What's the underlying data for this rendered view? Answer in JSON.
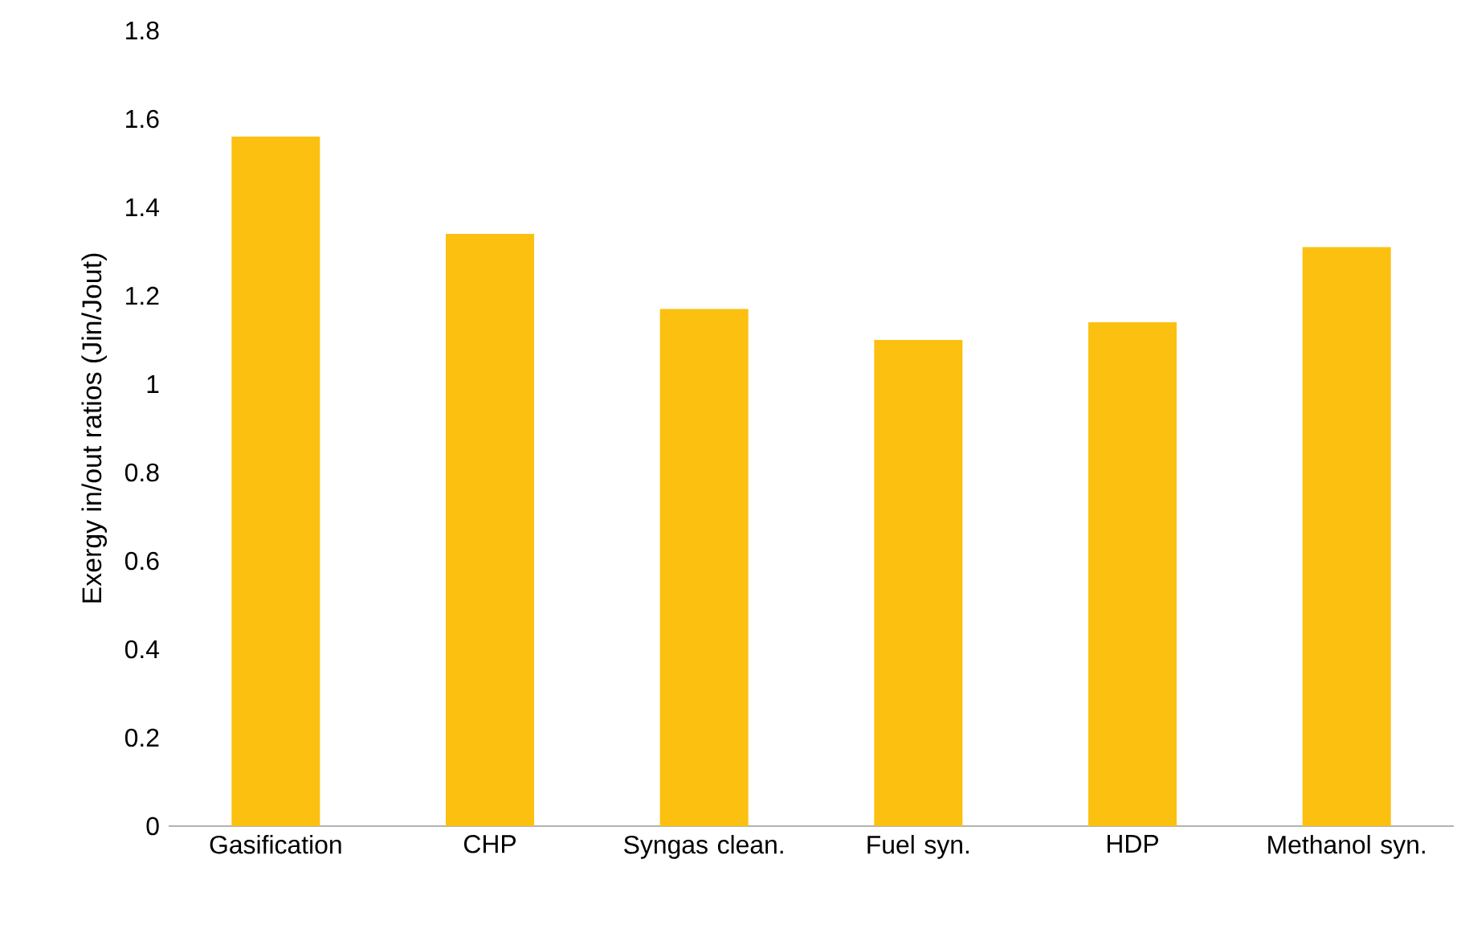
{
  "chart_data": {
    "type": "bar",
    "ylabel": "Exergy in/out ratios (Jin/Jout)",
    "categories": [
      "Gasification",
      "CHP",
      "Syngas clean.",
      "Fuel syn.",
      "HDP",
      "Methanol syn."
    ],
    "values": [
      1.56,
      1.34,
      1.17,
      1.1,
      1.14,
      1.31
    ],
    "color": "#fcc010",
    "ylim": [
      0,
      1.8
    ],
    "yticks": [
      0,
      0.2,
      0.4,
      0.6,
      0.8,
      1,
      1.2,
      1.4,
      1.6,
      1.8
    ]
  }
}
